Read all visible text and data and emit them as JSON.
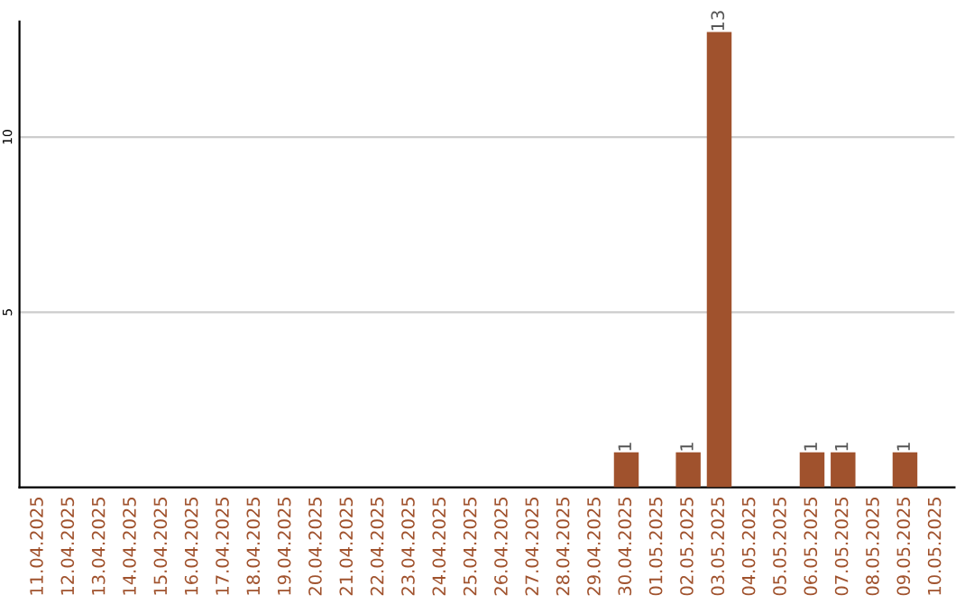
{
  "chart_data": {
    "type": "bar",
    "categories": [
      "11.04.2025",
      "12.04.2025",
      "13.04.2025",
      "14.04.2025",
      "15.04.2025",
      "16.04.2025",
      "17.04.2025",
      "18.04.2025",
      "19.04.2025",
      "20.04.2025",
      "21.04.2025",
      "22.04.2025",
      "23.04.2025",
      "24.04.2025",
      "25.04.2025",
      "26.04.2025",
      "27.04.2025",
      "28.04.2025",
      "29.04.2025",
      "30.04.2025",
      "01.05.2025",
      "02.05.2025",
      "03.05.2025",
      "04.05.2025",
      "05.05.2025",
      "06.05.2025",
      "07.05.2025",
      "08.05.2025",
      "09.05.2025",
      "10.05.2025"
    ],
    "values": [
      0,
      0,
      0,
      0,
      0,
      0,
      0,
      0,
      0,
      0,
      0,
      0,
      0,
      0,
      0,
      0,
      0,
      0,
      0,
      1,
      0,
      1,
      13,
      0,
      0,
      1,
      1,
      0,
      1,
      0
    ],
    "value_labels": [
      null,
      null,
      null,
      null,
      null,
      null,
      null,
      null,
      null,
      null,
      null,
      null,
      null,
      null,
      null,
      null,
      null,
      null,
      null,
      "1",
      null,
      "1",
      "13",
      null,
      null,
      "1",
      "1",
      null,
      "1",
      null
    ],
    "color": "#a0522d",
    "ylim": [
      0,
      13.3
    ],
    "yticks": [
      5,
      10
    ],
    "grid": "y"
  }
}
